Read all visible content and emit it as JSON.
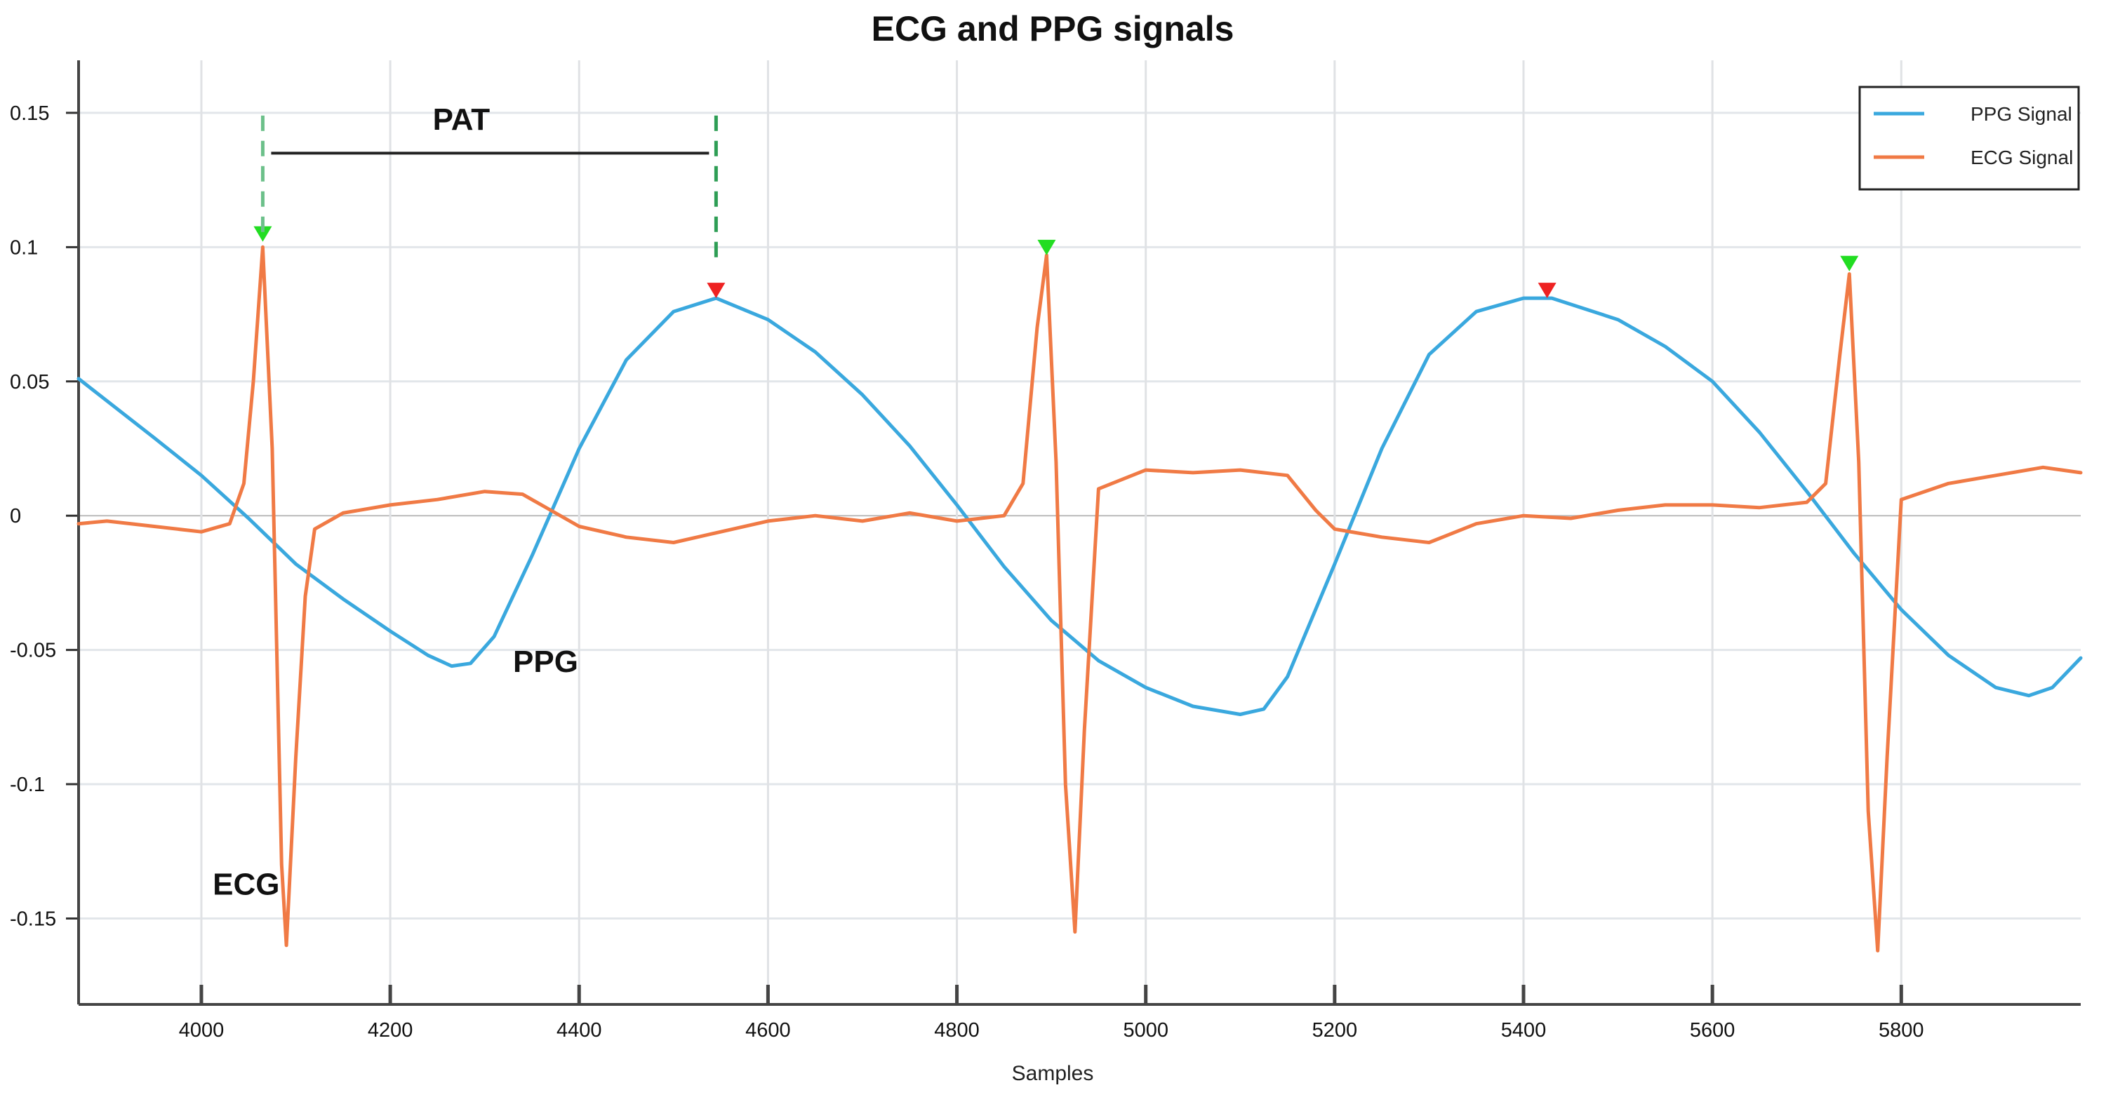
{
  "chart_data": {
    "type": "line",
    "title": "ECG and PPG signals",
    "xlabel": "Samples",
    "ylabel": "",
    "xlim": [
      3870,
      5990
    ],
    "ylim": [
      -0.182,
      0.168
    ],
    "grid": true,
    "legend_position": "top-right",
    "x_ticks": [
      4000,
      4200,
      4400,
      4600,
      4800,
      5000,
      5200,
      5400,
      5600,
      5800
    ],
    "y_ticks": [
      {
        "value": 0.15,
        "label": "0.15"
      },
      {
        "value": 0.1,
        "label": "0.1"
      },
      {
        "value": 0.05,
        "label": "0.05"
      },
      {
        "value": 0,
        "label": "0"
      },
      {
        "value": -0.05,
        "label": "-0.05"
      },
      {
        "value": -0.1,
        "label": "-0.1"
      },
      {
        "value": -0.15,
        "label": "-0.15"
      }
    ],
    "series": [
      {
        "name": "PPG Signal",
        "color": "#3AA8DE",
        "x": [
          3870,
          3950,
          4000,
          4050,
          4100,
          4150,
          4200,
          4240,
          4265,
          4285,
          4310,
          4350,
          4400,
          4450,
          4500,
          4545,
          4600,
          4650,
          4700,
          4750,
          4800,
          4850,
          4900,
          4950,
          5000,
          5050,
          5100,
          5125,
          5150,
          5200,
          5250,
          5300,
          5350,
          5400,
          5430,
          5500,
          5550,
          5600,
          5650,
          5700,
          5750,
          5800,
          5850,
          5900,
          5935,
          5960,
          5990
        ],
        "values": [
          0.051,
          0.029,
          0.015,
          -0.001,
          -0.018,
          -0.031,
          -0.043,
          -0.052,
          -0.056,
          -0.055,
          -0.045,
          -0.015,
          0.025,
          0.058,
          0.076,
          0.081,
          0.073,
          0.061,
          0.045,
          0.026,
          0.004,
          -0.019,
          -0.039,
          -0.054,
          -0.064,
          -0.071,
          -0.074,
          -0.072,
          -0.06,
          -0.018,
          0.025,
          0.06,
          0.076,
          0.081,
          0.081,
          0.073,
          0.063,
          0.05,
          0.031,
          0.009,
          -0.014,
          -0.035,
          -0.052,
          -0.064,
          -0.067,
          -0.064,
          -0.053
        ]
      },
      {
        "name": "ECG Signal",
        "color": "#F07A45",
        "x": [
          3870,
          3900,
          3950,
          4000,
          4030,
          4045,
          4055,
          4065,
          4075,
          4085,
          4090,
          4100,
          4110,
          4120,
          4150,
          4200,
          4250,
          4300,
          4340,
          4370,
          4400,
          4450,
          4500,
          4550,
          4600,
          4650,
          4700,
          4750,
          4800,
          4850,
          4870,
          4885,
          4895,
          4905,
          4915,
          4925,
          4935,
          4950,
          5000,
          5050,
          5100,
          5150,
          5180,
          5200,
          5250,
          5300,
          5350,
          5400,
          5450,
          5500,
          5550,
          5600,
          5650,
          5700,
          5720,
          5735,
          5745,
          5755,
          5765,
          5775,
          5785,
          5800,
          5850,
          5900,
          5950,
          5990
        ],
        "values": [
          -0.003,
          -0.002,
          -0.004,
          -0.006,
          -0.003,
          0.012,
          0.05,
          0.1,
          0.025,
          -0.13,
          -0.16,
          -0.09,
          -0.03,
          -0.005,
          0.001,
          0.004,
          0.006,
          0.009,
          0.008,
          0.002,
          -0.004,
          -0.008,
          -0.01,
          -0.006,
          -0.002,
          0.0,
          -0.002,
          0.001,
          -0.002,
          0.0,
          0.012,
          0.07,
          0.097,
          0.02,
          -0.1,
          -0.155,
          -0.08,
          0.01,
          0.017,
          0.016,
          0.017,
          0.015,
          0.002,
          -0.005,
          -0.008,
          -0.01,
          -0.003,
          0.0,
          -0.001,
          0.002,
          0.004,
          0.004,
          0.003,
          0.005,
          0.012,
          0.06,
          0.09,
          0.02,
          -0.11,
          -0.162,
          -0.09,
          0.006,
          0.012,
          0.015,
          0.018,
          0.016
        ]
      }
    ],
    "markers": [
      {
        "series": "ECG Signal",
        "x": 4065,
        "y": 0.102,
        "color": "#22DD22"
      },
      {
        "series": "ECG Signal",
        "x": 4895,
        "y": 0.097,
        "color": "#22DD22"
      },
      {
        "series": "ECG Signal",
        "x": 5745,
        "y": 0.091,
        "color": "#22DD22"
      },
      {
        "series": "PPG Signal",
        "x": 4545,
        "y": 0.081,
        "color": "#EE2222"
      },
      {
        "series": "PPG Signal",
        "x": 5425,
        "y": 0.081,
        "color": "#EE2222"
      }
    ],
    "annotations": {
      "pat": {
        "label": "PAT",
        "x_start": 4065,
        "x_end": 4545,
        "bracket_y": 0.135,
        "dash_top": 0.149,
        "label_y": 0.145
      },
      "ppg": {
        "label": "PPG",
        "x": 4330,
        "y": -0.054
      },
      "ecg": {
        "label": "ECG",
        "x": 4015,
        "y": -0.137
      }
    }
  }
}
